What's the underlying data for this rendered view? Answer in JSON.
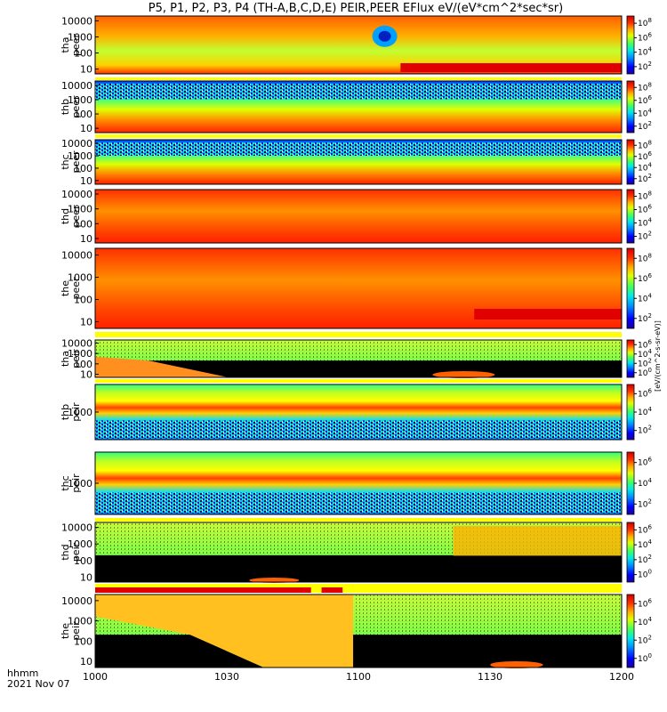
{
  "chart_data": {
    "type": "heatmap",
    "title": "P5, P1, P2, P3, P4 (TH-A,B,C,D,E) PEIR,PEER EFlux eV/(eV*cm^2*sec*sr)",
    "xlabel_line1": "hhmm",
    "xlabel_line2": "2021 Nov 07",
    "x_ticks": [
      "1000",
      "1030",
      "1100",
      "1130",
      "1200"
    ],
    "x_range": [
      "10:00",
      "12:00"
    ],
    "colorbar_unit": "eV/(eV*cm^2*sec*sr)",
    "colorbar_unit_display": "[eV/(cm^2-s-sr-eV)]",
    "panels": [
      {
        "label_line1": "tha",
        "label_line2": "peer",
        "species": "electrons",
        "y_ticks": [
          "10",
          "100",
          "1000",
          "10000"
        ],
        "y_scale": "log",
        "colorbar_ticks": [
          "10^2",
          "10^4",
          "10^6",
          "10^8"
        ],
        "flags": "none"
      },
      {
        "label_line1": "thb",
        "label_line2": "peer",
        "species": "electrons",
        "y_ticks": [
          "10",
          "100",
          "1000",
          "10000"
        ],
        "y_scale": "log",
        "colorbar_ticks": [
          "10^2",
          "10^4",
          "10^6",
          "10^8"
        ],
        "flags": "yellow"
      },
      {
        "label_line1": "thc",
        "label_line2": "peer",
        "species": "electrons",
        "y_ticks": [
          "10",
          "100",
          "1000",
          "10000"
        ],
        "y_scale": "log",
        "colorbar_ticks": [
          "10^2",
          "10^4",
          "10^6",
          "10^8"
        ],
        "flags": "yellow"
      },
      {
        "label_line1": "thd",
        "label_line2": "peer",
        "species": "electrons",
        "y_ticks": [
          "10",
          "100",
          "1000",
          "10000"
        ],
        "y_scale": "log",
        "colorbar_ticks": [
          "10^2",
          "10^4",
          "10^6",
          "10^8"
        ],
        "flags": "none"
      },
      {
        "label_line1": "the",
        "label_line2": "peer",
        "species": "electrons",
        "y_ticks": [
          "10",
          "100",
          "1000",
          "10000"
        ],
        "y_scale": "log",
        "colorbar_ticks": [
          "10^2",
          "10^4",
          "10^6",
          "10^8"
        ],
        "flags": "none"
      },
      {
        "label_line1": "tha",
        "label_line2": "peir",
        "species": "ions",
        "y_ticks": [
          "10",
          "100",
          "1000",
          "10000"
        ],
        "y_scale": "log",
        "colorbar_ticks": [
          "10^0",
          "10^2",
          "10^4",
          "10^6"
        ],
        "flags": "yellow"
      },
      {
        "label_line1": "thb",
        "label_line2": "peir",
        "species": "ions",
        "y_ticks": [
          "1000"
        ],
        "y_scale": "log",
        "colorbar_ticks": [
          "10^2",
          "10^4",
          "10^6"
        ],
        "flags": "yellow"
      },
      {
        "label_line1": "thc",
        "label_line2": "peir",
        "species": "ions",
        "y_ticks": [
          "1000"
        ],
        "y_scale": "log",
        "colorbar_ticks": [
          "10^2",
          "10^4",
          "10^6"
        ],
        "flags": "yellow"
      },
      {
        "label_line1": "thd",
        "label_line2": "peir",
        "species": "ions",
        "y_ticks": [
          "10",
          "100",
          "1000",
          "10000"
        ],
        "y_scale": "log",
        "colorbar_ticks": [
          "10^0",
          "10^2",
          "10^4",
          "10^6"
        ],
        "flags": "yellow"
      },
      {
        "label_line1": "the",
        "label_line2": "peir",
        "species": "ions",
        "y_ticks": [
          "10",
          "100",
          "1000",
          "10000"
        ],
        "y_scale": "log",
        "colorbar_ticks": [
          "10^0",
          "10^2",
          "10^4",
          "10^6"
        ],
        "flags": "red-yellow"
      }
    ]
  },
  "colors": {
    "jet": [
      "#1a00a0",
      "#0000ff",
      "#0080ff",
      "#00e0e0",
      "#30ff80",
      "#b0ff20",
      "#ffff00",
      "#ff9000",
      "#ff2000",
      "#d00000"
    ],
    "flag_yellow": "#ffff00",
    "flag_red": "#e00000",
    "no_data": "#000000"
  }
}
